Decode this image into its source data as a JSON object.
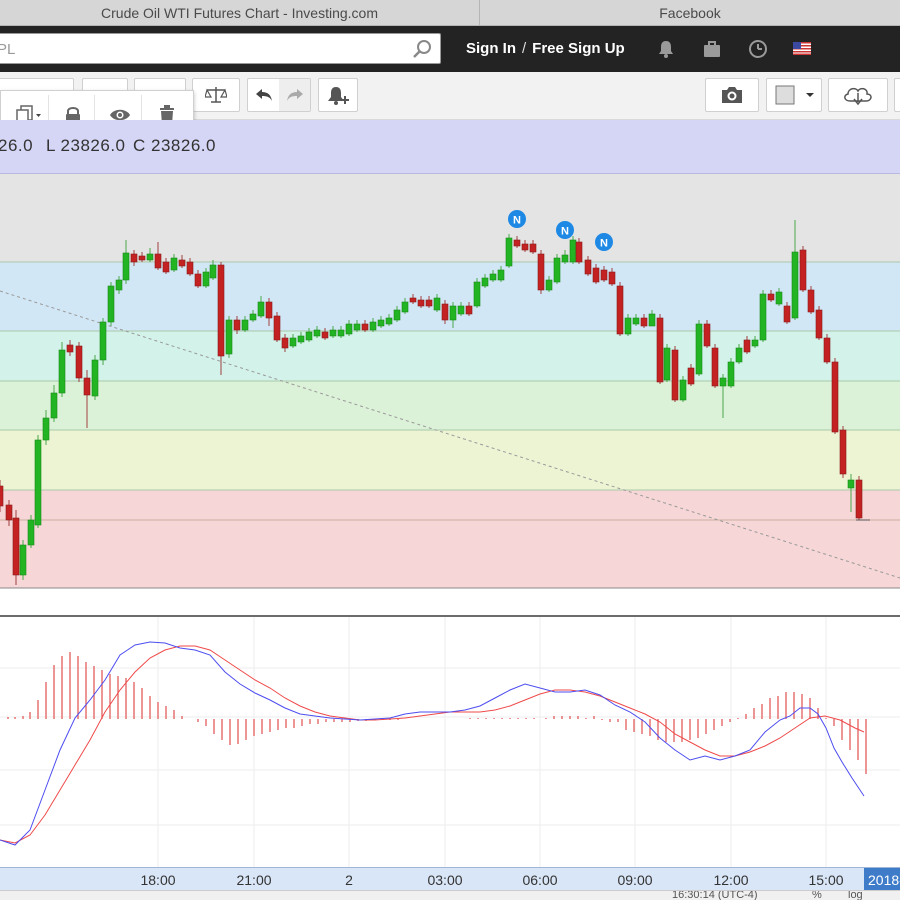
{
  "browser": {
    "tabs": [
      {
        "label": "Crude Oil WTI Futures Chart - Investing.com"
      },
      {
        "label": "Facebook"
      }
    ]
  },
  "header": {
    "search_value": "PL",
    "sign_in": "Sign In",
    "separator": "/",
    "free_sign_up": "Free Sign Up",
    "icons": [
      "bell-icon",
      "briefcase-icon",
      "clock-icon",
      "us-flag-icon"
    ]
  },
  "toolbar": {
    "icons": [
      "scale-icon",
      "undo-icon",
      "redo-icon",
      "add-alert-icon",
      "camera-icon",
      "color-swatch-icon",
      "cloud-download-icon"
    ],
    "popup_icons": [
      "copy-icon",
      "lock-icon",
      "eye-icon",
      "trash-icon"
    ]
  },
  "ohlc": {
    "open_partial": "26.0",
    "low": "L 23826.0",
    "close": "C 23826.0"
  },
  "timeaxis": {
    "labels": [
      "18:00",
      "21:00",
      "2",
      "03:00",
      "06:00",
      "09:00",
      "12:00",
      "15:00"
    ],
    "current": "2018-"
  },
  "status": {
    "time": "16:30:14 (UTC-4)",
    "pct": "%",
    "log": "log"
  },
  "chart_data": {
    "type": "candlestick",
    "panels": [
      "price",
      "macd"
    ],
    "annotations": {
      "news_marker": "N"
    },
    "colors": {
      "up": "#22b422",
      "down": "#c42222",
      "macd_line": "#4d4df0",
      "signal_line": "#ef4a4a",
      "histogram": "#e05050"
    },
    "fib_zones": [
      "#e4e4e4",
      "#d2e7f5",
      "#d2f2ea",
      "#dcf2d8",
      "#edf4d4",
      "#f6d6d6"
    ]
  }
}
